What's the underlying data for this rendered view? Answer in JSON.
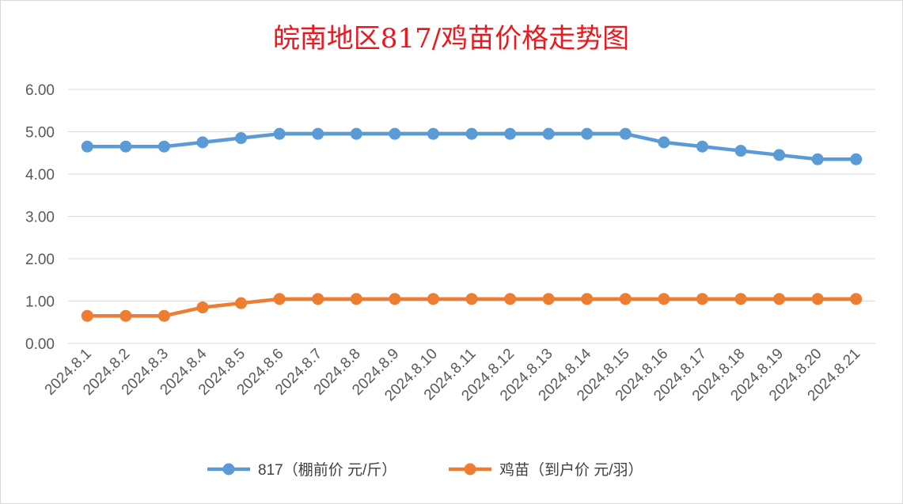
{
  "chart_data": {
    "type": "line",
    "title": "皖南地区817/鸡苗价格走势图",
    "categories": [
      "2024.8.1",
      "2024.8.2",
      "2024.8.3",
      "2024.8.4",
      "2024.8.5",
      "2024.8.6",
      "2024.8.7",
      "2024.8.8",
      "2024.8.9",
      "2024.8.10",
      "2024.8.11",
      "2024.8.12",
      "2024.8.13",
      "2024.8.14",
      "2024.8.15",
      "2024.8.16",
      "2024.8.17",
      "2024.8.18",
      "2024.8.19",
      "2024.8.20",
      "2024.8.21"
    ],
    "series": [
      {
        "name": "817（棚前价 元/斤）",
        "color": "#5b9bd5",
        "values": [
          4.65,
          4.65,
          4.65,
          4.75,
          4.85,
          4.95,
          4.95,
          4.95,
          4.95,
          4.95,
          4.95,
          4.95,
          4.95,
          4.95,
          4.95,
          4.75,
          4.65,
          4.55,
          4.45,
          4.35,
          4.35
        ]
      },
      {
        "name": "鸡苗（到户价 元/羽）",
        "color": "#ed7d31",
        "values": [
          0.65,
          0.65,
          0.65,
          0.85,
          0.95,
          1.05,
          1.05,
          1.05,
          1.05,
          1.05,
          1.05,
          1.05,
          1.05,
          1.05,
          1.05,
          1.05,
          1.05,
          1.05,
          1.05,
          1.05,
          1.05
        ]
      }
    ],
    "yticks": [
      "0.00",
      "1.00",
      "2.00",
      "3.00",
      "4.00",
      "5.00",
      "6.00"
    ],
    "ylim": [
      0,
      6
    ],
    "grid": true,
    "legend_position": "bottom",
    "gridline_color": "#d9d9d9"
  }
}
